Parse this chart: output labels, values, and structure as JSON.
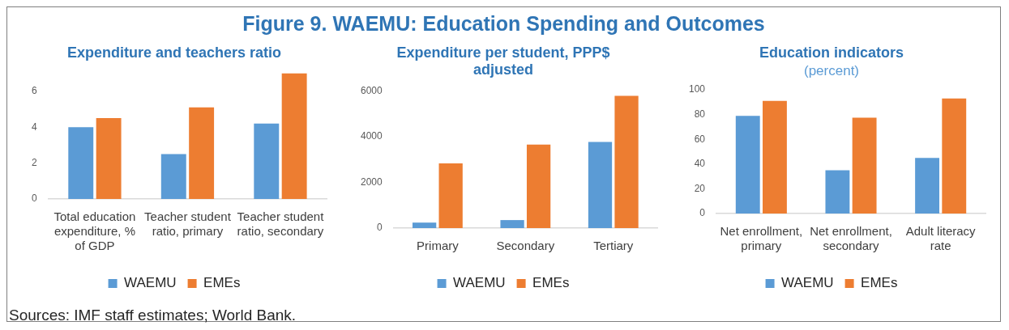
{
  "chart_data": [
    {
      "type": "other",
      "title": "Figure 9. WAEMU: Education Spending and Outcomes",
      "annotations": [
        "Sources: IMF staff estimates; World Bank."
      ]
    },
    {
      "type": "bar",
      "title": "Expenditure and teachers ratio",
      "categories": [
        "Total education expenditure, % of GDP",
        "Teacher student ratio, primary",
        "Teacher student ratio, secondary"
      ],
      "series": [
        {
          "name": "WAEMU",
          "color": "#5b9bd5",
          "values": [
            4.0,
            2.5,
            4.2
          ]
        },
        {
          "name": "EMEs",
          "color": "#ed7d31",
          "values": [
            4.5,
            5.1,
            7.0
          ]
        }
      ],
      "ylim": [
        0,
        7
      ],
      "yticks": [
        0,
        2,
        4,
        6
      ],
      "grid": false,
      "legend": "bottom"
    },
    {
      "type": "bar",
      "title": "Expenditure per student, PPP$ adjusted",
      "categories": [
        "Primary",
        "Secondary",
        "Tertiary"
      ],
      "series": [
        {
          "name": "WAEMU",
          "color": "#5b9bd5",
          "values": [
            240,
            350,
            3760
          ]
        },
        {
          "name": "EMEs",
          "color": "#ed7d31",
          "values": [
            2830,
            3650,
            5780
          ]
        }
      ],
      "ylim": [
        0,
        6000
      ],
      "yticks": [
        0,
        2000,
        4000,
        6000
      ],
      "grid": false,
      "legend": "bottom"
    },
    {
      "type": "bar",
      "title": "Education indicators",
      "subtitle": "(percent)",
      "categories": [
        "Net enrollment, primary",
        "Net enrollment, secondary",
        "Adult literacy rate"
      ],
      "series": [
        {
          "name": "WAEMU",
          "color": "#5b9bd5",
          "values": [
            79,
            35,
            45
          ]
        },
        {
          "name": "EMEs",
          "color": "#ed7d31",
          "values": [
            91,
            77.5,
            93
          ]
        }
      ],
      "ylim": [
        0,
        100
      ],
      "yticks": [
        0,
        20,
        40,
        60,
        80,
        100
      ],
      "grid": false,
      "legend": "bottom"
    }
  ]
}
